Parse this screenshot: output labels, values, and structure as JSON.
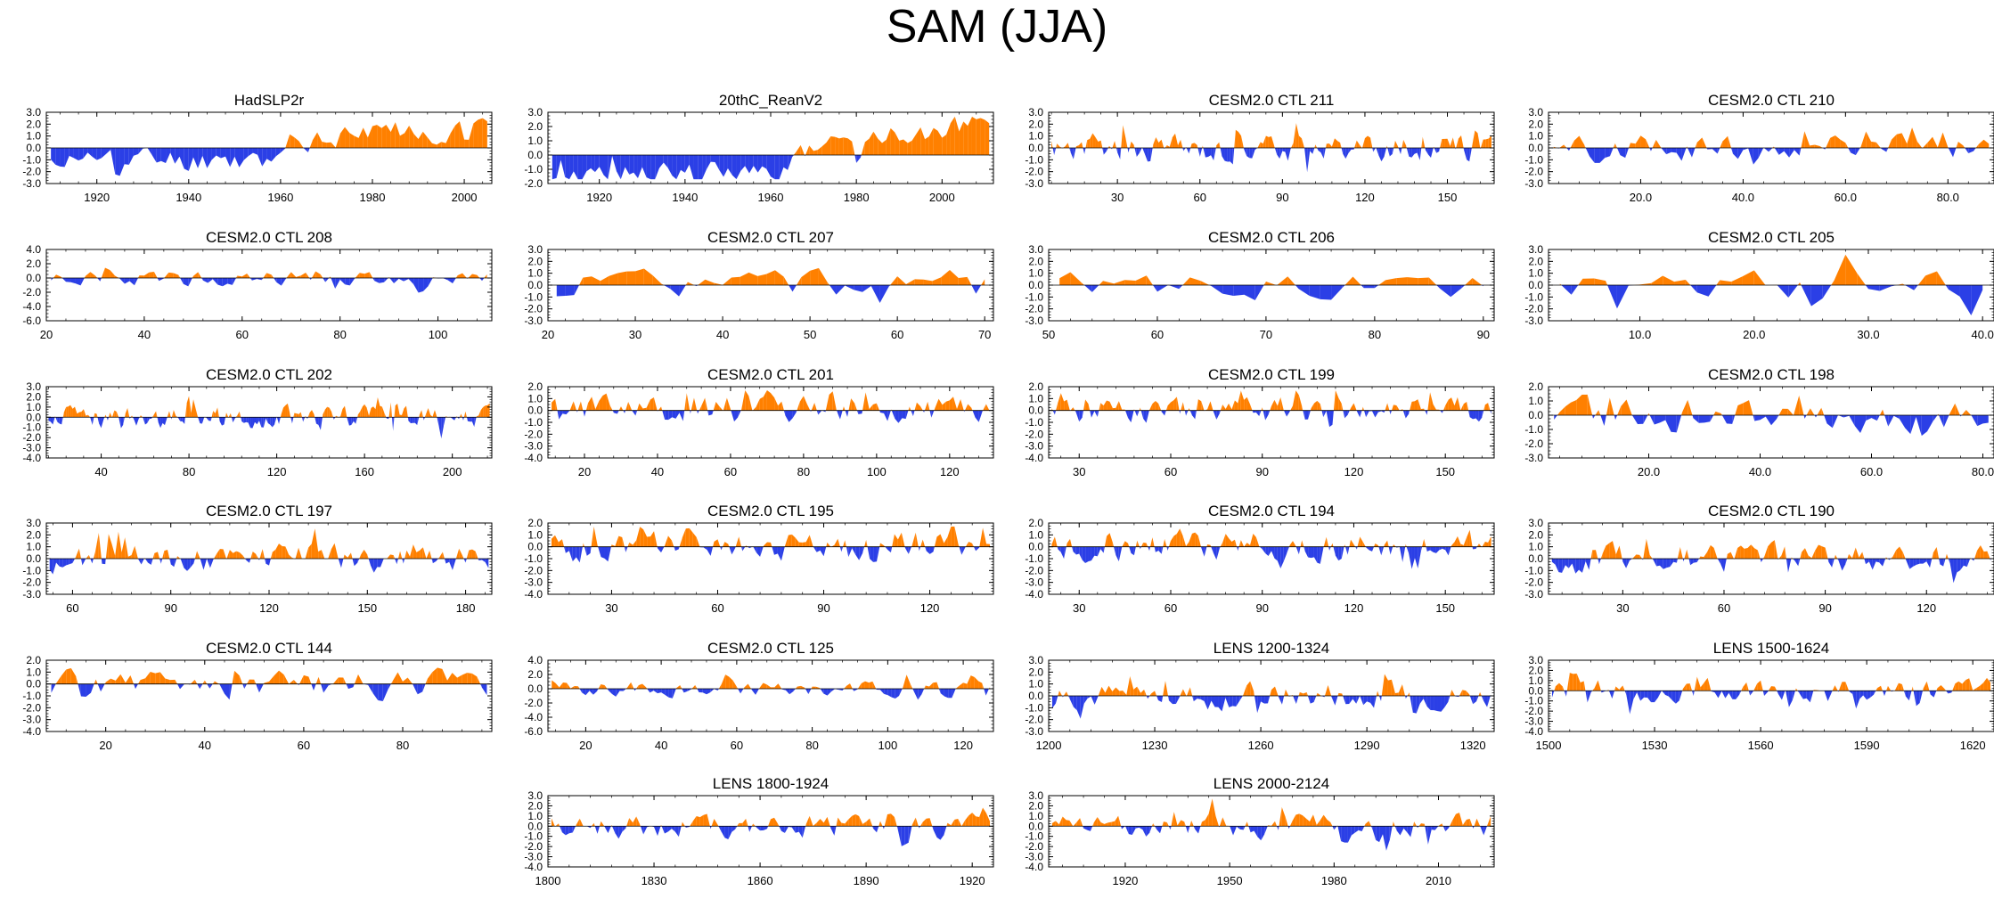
{
  "title": "SAM (JJA)",
  "colors": {
    "positive": "#ff8000",
    "negative": "#2b3fe6",
    "axis": "#000000"
  },
  "chart_data": [
    {
      "name": "HadSLP2r",
      "type": "area",
      "xlim": [
        1909,
        2006
      ],
      "ylim": [
        -3,
        3
      ],
      "yticks": [
        "3.0",
        "2.0",
        "1.0",
        "0.0",
        "-1.0",
        "-2.0",
        "-3.0"
      ],
      "xticks": [
        {
          "v": 1920,
          "l": "1920"
        },
        {
          "v": 1940,
          "l": "1940"
        },
        {
          "v": 1960,
          "l": "1960"
        },
        {
          "v": 1980,
          "l": "1980"
        },
        {
          "v": 2000,
          "l": "2000"
        }
      ],
      "seed": 11,
      "amp": 1.0,
      "trend": [
        [
          0,
          -0.6
        ],
        [
          0.5,
          -0.5
        ],
        [
          0.53,
          0.5
        ],
        [
          1,
          1.0
        ]
      ]
    },
    {
      "name": "20thC_ReanV2",
      "type": "area",
      "xlim": [
        1908,
        2012
      ],
      "ylim": [
        -2,
        3
      ],
      "yticks": [
        "3.0",
        "2.0",
        "1.0",
        "0.0",
        "-1.0",
        "-2.0"
      ],
      "xticks": [
        {
          "v": 1920,
          "l": "1920"
        },
        {
          "v": 1940,
          "l": "1940"
        },
        {
          "v": 1960,
          "l": "1960"
        },
        {
          "v": 1980,
          "l": "1980"
        },
        {
          "v": 2000,
          "l": "2000"
        }
      ],
      "seed": 22,
      "amp": 0.7,
      "trend": [
        [
          0,
          -0.8
        ],
        [
          0.5,
          -0.6
        ],
        [
          0.6,
          0.3
        ],
        [
          1,
          1.2
        ]
      ]
    },
    {
      "name": "CESM2.0 CTL 211",
      "type": "area",
      "xlim": [
        5,
        167
      ],
      "ylim": [
        -3,
        3
      ],
      "yticks": [
        "3.0",
        "2.0",
        "1.0",
        "0.0",
        "-1.0",
        "-2.0",
        "-3.0"
      ],
      "xticks": [
        {
          "v": 30,
          "l": "30"
        },
        {
          "v": 60,
          "l": "60"
        },
        {
          "v": 90,
          "l": "90"
        },
        {
          "v": 120,
          "l": "120"
        },
        {
          "v": 150,
          "l": "150"
        }
      ],
      "seed": 33,
      "amp": 1.0
    },
    {
      "name": "CESM2.0 CTL 210",
      "type": "area",
      "xlim": [
        2,
        89
      ],
      "ylim": [
        -3,
        3
      ],
      "yticks": [
        "3.0",
        "2.0",
        "1.0",
        "0.0",
        "-1.0",
        "-2.0",
        "-3.0"
      ],
      "xticks": [
        {
          "v": 20,
          "l": "20.0"
        },
        {
          "v": 40,
          "l": "40.0"
        },
        {
          "v": 60,
          "l": "60.0"
        },
        {
          "v": 80,
          "l": "80.0"
        }
      ],
      "seed": 44,
      "amp": 1.0
    },
    {
      "name": "CESM2.0 CTL 208",
      "type": "area",
      "xlim": [
        20,
        111
      ],
      "ylim": [
        -6,
        4
      ],
      "yticks": [
        "4.0",
        "2.0",
        "0.0",
        "-2.0",
        "-4.0",
        "-6.0"
      ],
      "xticks": [
        {
          "v": 20,
          "l": "20"
        },
        {
          "v": 40,
          "l": "40"
        },
        {
          "v": 60,
          "l": "60"
        },
        {
          "v": 80,
          "l": "80"
        },
        {
          "v": 100,
          "l": "100"
        }
      ],
      "seed": 55,
      "amp": 0.9
    },
    {
      "name": "CESM2.0 CTL 207",
      "type": "area",
      "xlim": [
        20,
        71
      ],
      "ylim": [
        -3,
        3
      ],
      "yticks": [
        "3.0",
        "2.0",
        "1.0",
        "0.0",
        "-1.0",
        "-2.0",
        "-3.0"
      ],
      "xticks": [
        {
          "v": 20,
          "l": "20"
        },
        {
          "v": 30,
          "l": "30"
        },
        {
          "v": 40,
          "l": "40"
        },
        {
          "v": 50,
          "l": "50"
        },
        {
          "v": 60,
          "l": "60"
        },
        {
          "v": 70,
          "l": "70"
        }
      ],
      "seed": 66,
      "amp": 1.1
    },
    {
      "name": "CESM2.0 CTL 206",
      "type": "area",
      "xlim": [
        50,
        91
      ],
      "ylim": [
        -3,
        3
      ],
      "yticks": [
        "3.0",
        "2.0",
        "1.0",
        "0.0",
        "-1.0",
        "-2.0",
        "-3.0"
      ],
      "xticks": [
        {
          "v": 50,
          "l": "50"
        },
        {
          "v": 60,
          "l": "60"
        },
        {
          "v": 70,
          "l": "70"
        },
        {
          "v": 80,
          "l": "80"
        },
        {
          "v": 90,
          "l": "90"
        }
      ],
      "seed": 77,
      "amp": 1.0
    },
    {
      "name": "CESM2.0 CTL 205",
      "type": "area",
      "xlim": [
        2,
        41
      ],
      "ylim": [
        -3,
        3
      ],
      "yticks": [
        "3.0",
        "2.0",
        "1.0",
        "0.0",
        "-1.0",
        "-2.0",
        "-3.0"
      ],
      "xticks": [
        {
          "v": 10,
          "l": "10.0"
        },
        {
          "v": 20,
          "l": "20.0"
        },
        {
          "v": 30,
          "l": "30.0"
        },
        {
          "v": 40,
          "l": "40.0"
        }
      ],
      "seed": 88,
      "amp": 1.1
    },
    {
      "name": "CESM2.0 CTL 202",
      "type": "area",
      "xlim": [
        15,
        218
      ],
      "ylim": [
        -4,
        3
      ],
      "yticks": [
        "3.0",
        "2.0",
        "1.0",
        "0.0",
        "-1.0",
        "-2.0",
        "-3.0",
        "-4.0"
      ],
      "xticks": [
        {
          "v": 40,
          "l": "40"
        },
        {
          "v": 80,
          "l": "80"
        },
        {
          "v": 120,
          "l": "120"
        },
        {
          "v": 160,
          "l": "160"
        },
        {
          "v": 200,
          "l": "200"
        }
      ],
      "seed": 99,
      "amp": 0.9
    },
    {
      "name": "CESM2.0 CTL 201",
      "type": "area",
      "xlim": [
        10,
        132
      ],
      "ylim": [
        -4,
        2
      ],
      "yticks": [
        "2.0",
        "1.0",
        "0.0",
        "-1.0",
        "-2.0",
        "-3.0",
        "-4.0"
      ],
      "xticks": [
        {
          "v": 20,
          "l": "20"
        },
        {
          "v": 40,
          "l": "40"
        },
        {
          "v": 60,
          "l": "60"
        },
        {
          "v": 80,
          "l": "80"
        },
        {
          "v": 100,
          "l": "100"
        },
        {
          "v": 120,
          "l": "120"
        }
      ],
      "seed": 111,
      "amp": 1.0
    },
    {
      "name": "CESM2.0 CTL 199",
      "type": "area",
      "xlim": [
        20,
        166
      ],
      "ylim": [
        -4,
        2
      ],
      "yticks": [
        "2.0",
        "1.0",
        "0.0",
        "-1.0",
        "-2.0",
        "-3.0",
        "-4.0"
      ],
      "xticks": [
        {
          "v": 30,
          "l": "30"
        },
        {
          "v": 60,
          "l": "60"
        },
        {
          "v": 90,
          "l": "90"
        },
        {
          "v": 120,
          "l": "120"
        },
        {
          "v": 150,
          "l": "150"
        }
      ],
      "seed": 122,
      "amp": 1.0
    },
    {
      "name": "CESM2.0 CTL 198",
      "type": "area",
      "xlim": [
        2,
        82
      ],
      "ylim": [
        -3,
        2
      ],
      "yticks": [
        "2.0",
        "1.0",
        "0.0",
        "-1.0",
        "-2.0",
        "-3.0"
      ],
      "xticks": [
        {
          "v": 20,
          "l": "20.0"
        },
        {
          "v": 40,
          "l": "40.0"
        },
        {
          "v": 60,
          "l": "60.0"
        },
        {
          "v": 80,
          "l": "80.0"
        }
      ],
      "seed": 133,
      "amp": 1.1
    },
    {
      "name": "CESM2.0 CTL 197",
      "type": "area",
      "xlim": [
        52,
        188
      ],
      "ylim": [
        -3,
        3
      ],
      "yticks": [
        "3.0",
        "2.0",
        "1.0",
        "0.0",
        "-1.0",
        "-2.0",
        "-3.0"
      ],
      "xticks": [
        {
          "v": 60,
          "l": "60"
        },
        {
          "v": 90,
          "l": "90"
        },
        {
          "v": 120,
          "l": "120"
        },
        {
          "v": 150,
          "l": "150"
        },
        {
          "v": 180,
          "l": "180"
        }
      ],
      "seed": 144,
      "amp": 1.0
    },
    {
      "name": "CESM2.0 CTL 195",
      "type": "area",
      "xlim": [
        12,
        138
      ],
      "ylim": [
        -4,
        2
      ],
      "yticks": [
        "2.0",
        "1.0",
        "0.0",
        "-1.0",
        "-2.0",
        "-3.0",
        "-4.0"
      ],
      "xticks": [
        {
          "v": 30,
          "l": "30"
        },
        {
          "v": 60,
          "l": "60"
        },
        {
          "v": 90,
          "l": "90"
        },
        {
          "v": 120,
          "l": "120"
        }
      ],
      "seed": 155,
      "amp": 1.0
    },
    {
      "name": "CESM2.0 CTL 194",
      "type": "area",
      "xlim": [
        20,
        166
      ],
      "ylim": [
        -4,
        2
      ],
      "yticks": [
        "2.0",
        "1.0",
        "0.0",
        "-1.0",
        "-2.0",
        "-3.0",
        "-4.0"
      ],
      "xticks": [
        {
          "v": 30,
          "l": "30"
        },
        {
          "v": 60,
          "l": "60"
        },
        {
          "v": 90,
          "l": "90"
        },
        {
          "v": 120,
          "l": "120"
        },
        {
          "v": 150,
          "l": "150"
        }
      ],
      "seed": 166,
      "amp": 1.0
    },
    {
      "name": "CESM2.0 CTL 190",
      "type": "area",
      "xlim": [
        8,
        140
      ],
      "ylim": [
        -3,
        3
      ],
      "yticks": [
        "3.0",
        "2.0",
        "1.0",
        "0.0",
        "-1.0",
        "-2.0",
        "-3.0"
      ],
      "xticks": [
        {
          "v": 30,
          "l": "30"
        },
        {
          "v": 60,
          "l": "60"
        },
        {
          "v": 90,
          "l": "90"
        },
        {
          "v": 120,
          "l": "120"
        }
      ],
      "seed": 177,
      "amp": 1.0
    },
    {
      "name": "CESM2.0 CTL 144",
      "type": "area",
      "xlim": [
        8,
        98
      ],
      "ylim": [
        -4,
        2
      ],
      "yticks": [
        "2.0",
        "1.0",
        "0.0",
        "-1.0",
        "-2.0",
        "-3.0",
        "-4.0"
      ],
      "xticks": [
        {
          "v": 20,
          "l": "20"
        },
        {
          "v": 40,
          "l": "40"
        },
        {
          "v": 60,
          "l": "60"
        },
        {
          "v": 80,
          "l": "80"
        }
      ],
      "seed": 188,
      "amp": 1.0
    },
    {
      "name": "CESM2.0 CTL 125",
      "type": "area",
      "xlim": [
        10,
        128
      ],
      "ylim": [
        -6,
        4
      ],
      "yticks": [
        "4.0",
        "2.0",
        "0.0",
        "-2.0",
        "-4.0",
        "-6.0"
      ],
      "xticks": [
        {
          "v": 20,
          "l": "20"
        },
        {
          "v": 40,
          "l": "40"
        },
        {
          "v": 60,
          "l": "60"
        },
        {
          "v": 80,
          "l": "80"
        },
        {
          "v": 100,
          "l": "100"
        },
        {
          "v": 120,
          "l": "120"
        }
      ],
      "seed": 199,
      "amp": 0.9
    },
    {
      "name": "LENS 1200-1324",
      "type": "area",
      "xlim": [
        1200,
        1326
      ],
      "ylim": [
        -3,
        3
      ],
      "yticks": [
        "3.0",
        "2.0",
        "1.0",
        "0.0",
        "-1.0",
        "-2.0",
        "-3.0"
      ],
      "xticks": [
        {
          "v": 1200,
          "l": "1200"
        },
        {
          "v": 1230,
          "l": "1230"
        },
        {
          "v": 1260,
          "l": "1260"
        },
        {
          "v": 1290,
          "l": "1290"
        },
        {
          "v": 1320,
          "l": "1320"
        }
      ],
      "seed": 211,
      "amp": 1.0
    },
    {
      "name": "LENS 1500-1624",
      "type": "area",
      "xlim": [
        1500,
        1626
      ],
      "ylim": [
        -4,
        3
      ],
      "yticks": [
        "3.0",
        "2.0",
        "1.0",
        "0.0",
        "-1.0",
        "-2.0",
        "-3.0",
        "-4.0"
      ],
      "xticks": [
        {
          "v": 1500,
          "l": "1500"
        },
        {
          "v": 1530,
          "l": "1530"
        },
        {
          "v": 1560,
          "l": "1560"
        },
        {
          "v": 1590,
          "l": "1590"
        },
        {
          "v": 1620,
          "l": "1620"
        }
      ],
      "seed": 222,
      "amp": 1.0
    },
    {
      "name": "LENS 1800-1924",
      "type": "area",
      "xlim": [
        1800,
        1926
      ],
      "ylim": [
        -4,
        3
      ],
      "yticks": [
        "3.0",
        "2.0",
        "1.0",
        "0.0",
        "-1.0",
        "-2.0",
        "-3.0",
        "-4.0"
      ],
      "xticks": [
        {
          "v": 1800,
          "l": "1800"
        },
        {
          "v": 1830,
          "l": "1830"
        },
        {
          "v": 1860,
          "l": "1860"
        },
        {
          "v": 1890,
          "l": "1890"
        },
        {
          "v": 1920,
          "l": "1920"
        }
      ],
      "seed": 233,
      "amp": 1.0
    },
    {
      "name": "LENS 2000-2124",
      "type": "area",
      "xlim": [
        1898,
        2026
      ],
      "ylim": [
        -4,
        3
      ],
      "yticks": [
        "3.0",
        "2.0",
        "1.0",
        "0.0",
        "-1.0",
        "-2.0",
        "-3.0",
        "-4.0"
      ],
      "xticks": [
        {
          "v": 1920,
          "l": "1920"
        },
        {
          "v": 1950,
          "l": "1950"
        },
        {
          "v": 1980,
          "l": "1980"
        },
        {
          "v": 2010,
          "l": "2010"
        }
      ],
      "seed": 244,
      "amp": 1.0
    }
  ]
}
